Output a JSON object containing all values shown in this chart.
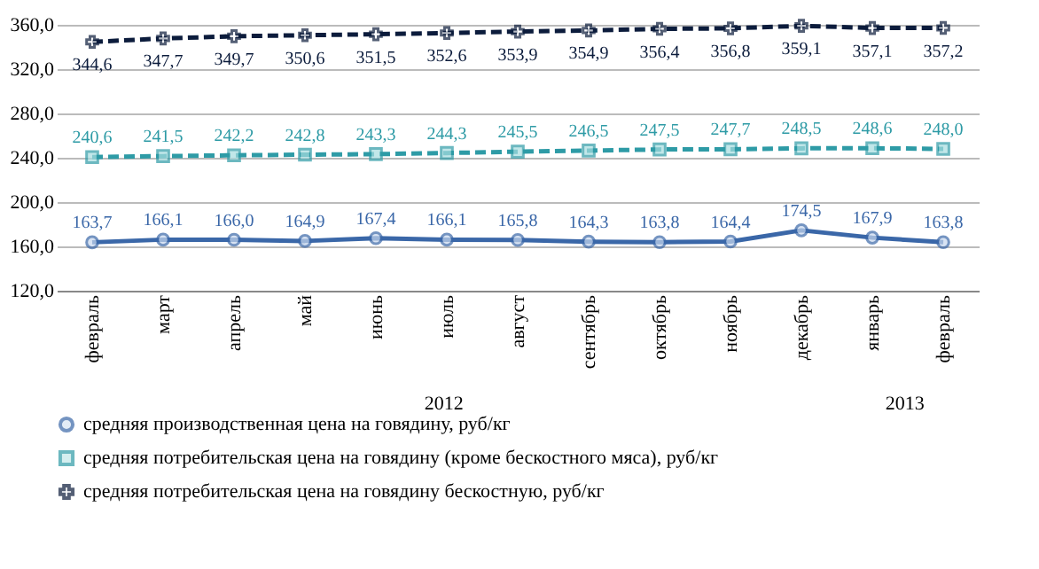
{
  "chart_data": {
    "type": "line",
    "categories": [
      "февраль",
      "март",
      "апрель",
      "май",
      "июнь",
      "июль",
      "август",
      "сентябрь",
      "октябрь",
      "ноябрь",
      "декабрь",
      "январь",
      "февраль"
    ],
    "series": [
      {
        "name": "средняя производственная цена на говядину, руб/кг",
        "color": "#3a67a8",
        "marker": "circle",
        "line_style": "solid",
        "values": [
          163.7,
          166.1,
          166.0,
          164.9,
          167.4,
          166.1,
          165.8,
          164.3,
          163.8,
          164.4,
          174.5,
          167.9,
          163.8
        ],
        "value_labels": [
          "163,7",
          "166,1",
          "166,0",
          "164,9",
          "167,4",
          "166,1",
          "165,8",
          "164,3",
          "163,8",
          "164,4",
          "174,5",
          "167,9",
          "163,8"
        ]
      },
      {
        "name": "средняя потребительская цена на говядину (кроме бескостного мяса), руб/кг",
        "color": "#2e9ba6",
        "marker": "square",
        "line_style": "dashed",
        "values": [
          240.6,
          241.5,
          242.2,
          242.8,
          243.3,
          244.3,
          245.5,
          246.5,
          247.5,
          247.7,
          248.5,
          248.6,
          248.0
        ],
        "value_labels": [
          "240,6",
          "241,5",
          "242,2",
          "242,8",
          "243,3",
          "244,3",
          "245,5",
          "246,5",
          "247,5",
          "247,7",
          "248,5",
          "248,6",
          "248,0"
        ]
      },
      {
        "name": "средняя потребительская цена на говядину бескостную, руб/кг",
        "color": "#0c1c3c",
        "marker": "cross",
        "line_style": "dashed",
        "values": [
          344.6,
          347.7,
          349.7,
          350.6,
          351.5,
          352.6,
          353.9,
          354.9,
          356.4,
          356.8,
          359.1,
          357.1,
          357.2
        ],
        "value_labels": [
          "344,6",
          "347,7",
          "349,7",
          "350,6",
          "351,5",
          "352,6",
          "353,9",
          "354,9",
          "356,4",
          "356,8",
          "359,1",
          "357,1",
          "357,2"
        ]
      }
    ],
    "ylim": [
      120,
      360
    ],
    "yticks": [
      {
        "value": 120,
        "label": "120,0"
      },
      {
        "value": 160,
        "label": "160,0"
      },
      {
        "value": 200,
        "label": "200,0"
      },
      {
        "value": 240,
        "label": "240,0"
      },
      {
        "value": 280,
        "label": "280,0"
      },
      {
        "value": 320,
        "label": "320,0"
      },
      {
        "value": 360,
        "label": "360,0"
      }
    ],
    "grid": "y",
    "legend": "bottom",
    "annotations": [
      "2012",
      "2013"
    ]
  }
}
